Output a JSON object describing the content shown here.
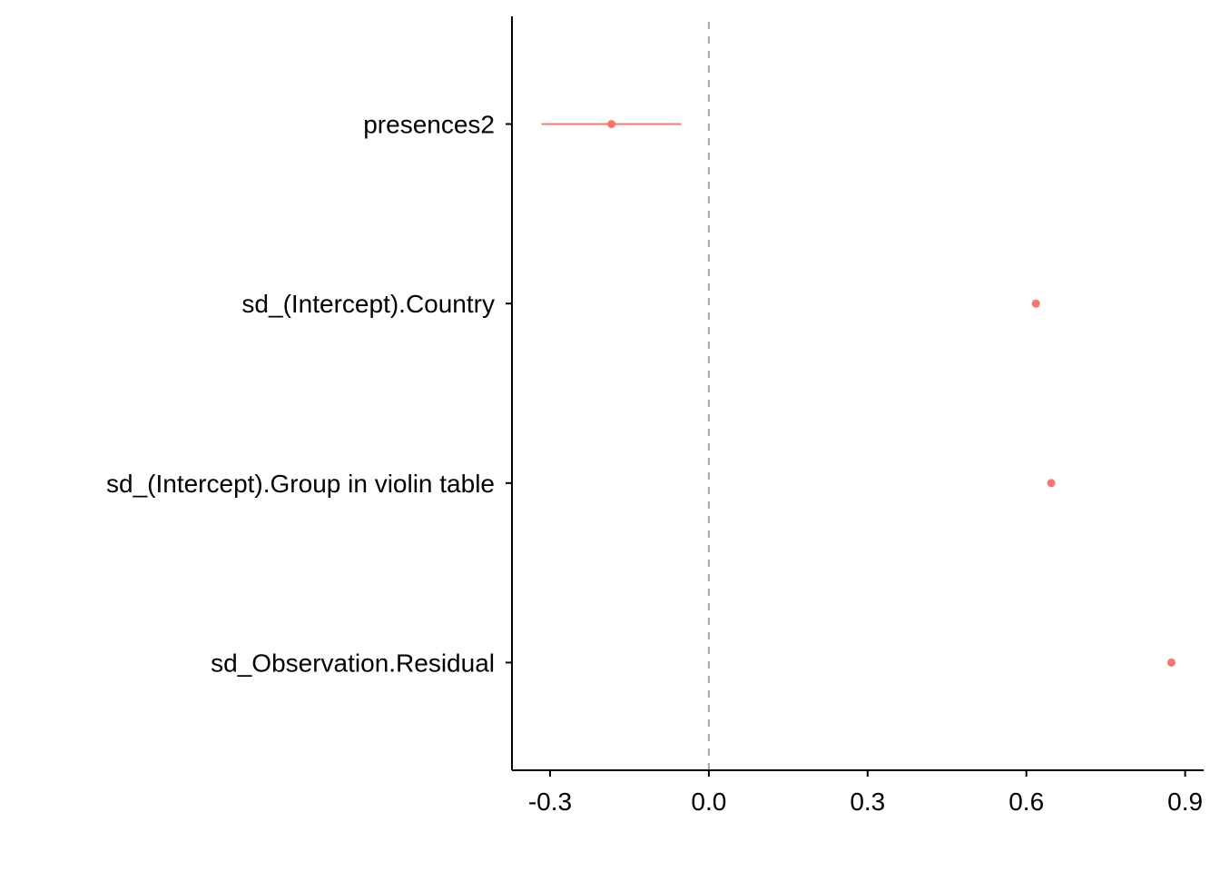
{
  "chart_data": {
    "type": "scatter",
    "title": "",
    "xlabel": "",
    "ylabel": "",
    "xlim": [
      -0.372,
      0.935
    ],
    "x_ticks": [
      -0.3,
      0.0,
      0.3,
      0.6,
      0.9
    ],
    "x_tick_labels": [
      "-0.3",
      "0.0",
      "0.3",
      "0.6",
      "0.9"
    ],
    "reference_line": {
      "x": 0.0,
      "style": "dashed"
    },
    "grid": false,
    "legend": "none",
    "series_color": "#f8766d",
    "reference_color": "#a6a6a6",
    "terms": [
      {
        "label": "presences2",
        "estimate": -0.184,
        "conf_low": -0.316,
        "conf_high": -0.052
      },
      {
        "label": "sd_(Intercept).Country",
        "estimate": 0.618,
        "conf_low": null,
        "conf_high": null
      },
      {
        "label": "sd_(Intercept).Group in violin table",
        "estimate": 0.647,
        "conf_low": null,
        "conf_high": null
      },
      {
        "label": "sd_Observation.Residual",
        "estimate": 0.874,
        "conf_low": null,
        "conf_high": null
      }
    ]
  }
}
